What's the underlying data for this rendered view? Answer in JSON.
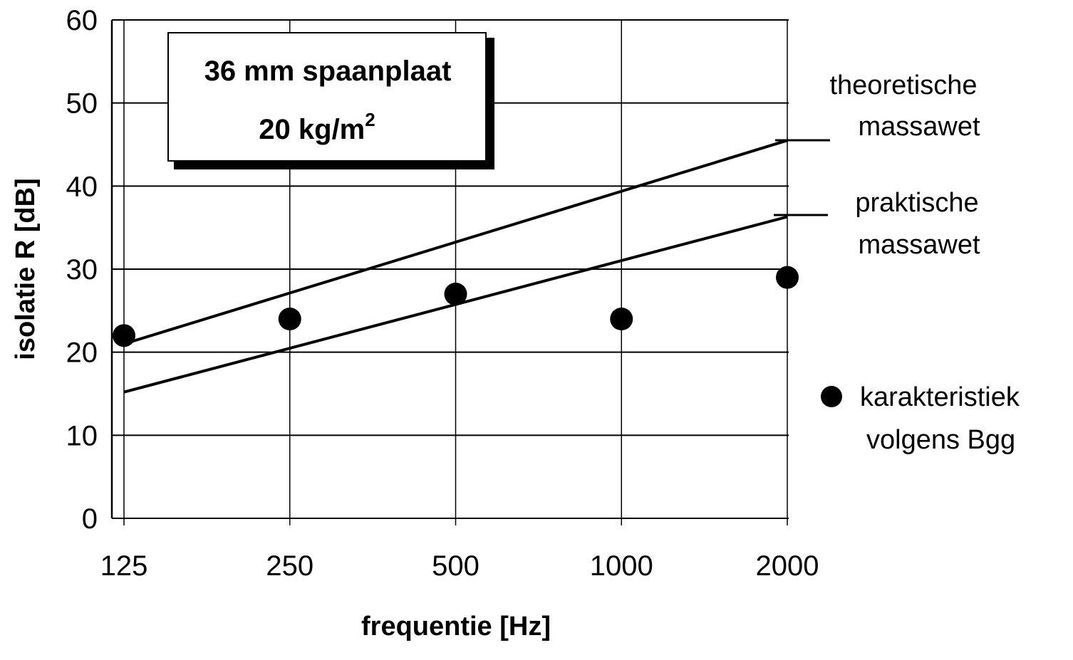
{
  "chart_data": {
    "type": "line",
    "xscale": "log2",
    "x": [
      125,
      250,
      500,
      1000,
      2000
    ],
    "x_tick_labels": [
      "125",
      "250",
      "500",
      "1000",
      "2000"
    ],
    "y_ticks": [
      0,
      10,
      20,
      30,
      40,
      50,
      60
    ],
    "ylim": [
      0,
      60
    ],
    "grid": true,
    "xlabel": "frequentie  [Hz]",
    "ylabel": "isolatie  R  [dB]",
    "annotation_box": {
      "line1": "36 mm spaanplaat",
      "line2_base": "20 kg/m",
      "line2_sup": "2"
    },
    "series": [
      {
        "name_line1": "theoretische",
        "name_line2": "massawet",
        "type": "line",
        "x": [
          125,
          2000
        ],
        "y": [
          21,
          45.5
        ]
      },
      {
        "name_line1": "praktische",
        "name_line2": "massawet",
        "type": "line",
        "x": [
          125,
          2000
        ],
        "y": [
          15.2,
          36.3
        ]
      },
      {
        "name_line1": "karakteristiek",
        "name_line2": "volgens Bgg",
        "type": "scatter",
        "x": [
          125,
          250,
          500,
          1000,
          2000
        ],
        "y": [
          22,
          24,
          27,
          24,
          29
        ]
      }
    ],
    "colors": {
      "ink": "#000000",
      "grid": "#000000",
      "background": "#ffffff"
    }
  }
}
